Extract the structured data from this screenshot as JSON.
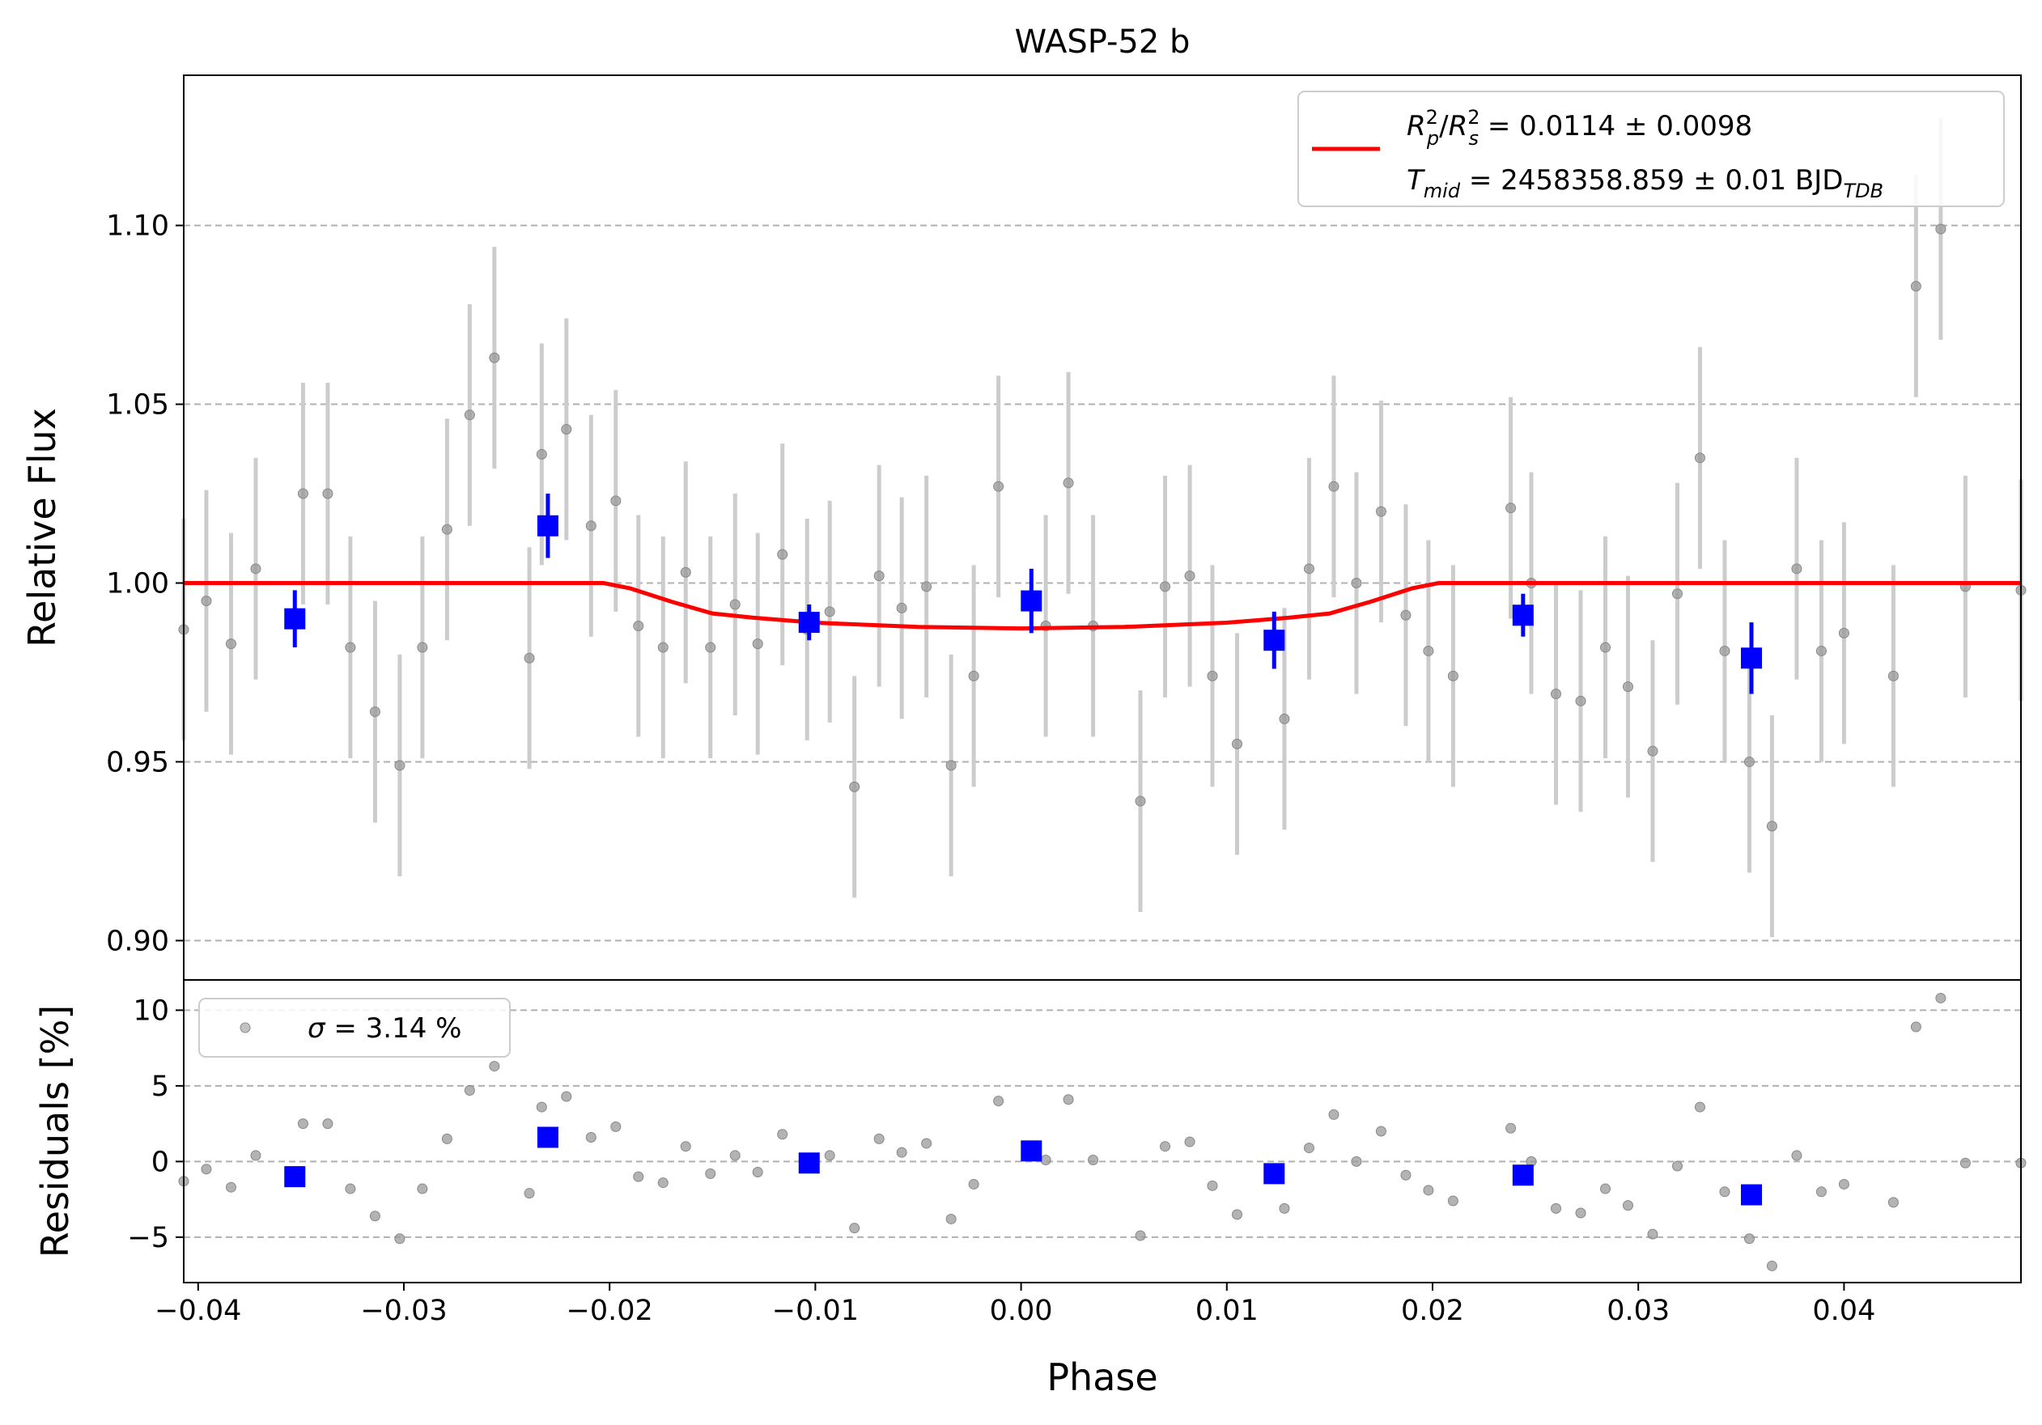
{
  "chart_data": [
    {
      "type": "scatter",
      "panel": "light-curve",
      "title": "WASP-52 b",
      "xlabel": "Phase",
      "ylabel": "Relative Flux",
      "xlim": [
        -0.0407,
        0.0486
      ],
      "ylim": [
        0.889,
        1.142
      ],
      "xticks": [
        {
          "v": -0.04,
          "label": "−0.04"
        },
        {
          "v": -0.03,
          "label": "−0.03"
        },
        {
          "v": -0.02,
          "label": "−0.02"
        },
        {
          "v": -0.01,
          "label": "−0.01"
        },
        {
          "v": 0.0,
          "label": "0.00"
        },
        {
          "v": 0.01,
          "label": "0.01"
        },
        {
          "v": 0.02,
          "label": "0.02"
        },
        {
          "v": 0.03,
          "label": "0.03"
        },
        {
          "v": 0.04,
          "label": "0.04"
        }
      ],
      "yticks": [
        {
          "v": 0.9,
          "label": "0.90"
        },
        {
          "v": 0.95,
          "label": "0.95"
        },
        {
          "v": 1.0,
          "label": "1.00"
        },
        {
          "v": 1.05,
          "label": "1.05"
        },
        {
          "v": 1.1,
          "label": "1.10"
        }
      ],
      "grid": "y-dashed",
      "legend": {
        "placement": "top-right",
        "line1_main": "R",
        "line1_text": " = 0.0114 ± 0.0098",
        "line2_main": "T",
        "line2_sub": "mid",
        "line2_text": " = 2458358.859 ± 0.01 BJD",
        "line2_unit_sub": "TDB"
      },
      "colors": {
        "raw": "#9a9a9a",
        "raw_err": "#cccccc",
        "binned": "#0000ff",
        "model": "#ff0000"
      },
      "series": [
        {
          "role": "raw",
          "x": [
            -0.0407,
            -0.0396,
            -0.0384,
            -0.0372,
            -0.0349,
            -0.0337,
            -0.0326,
            -0.0314,
            -0.0302,
            -0.0291,
            -0.0279,
            -0.0268,
            -0.0256,
            -0.0239,
            -0.0233,
            -0.0221,
            -0.0209,
            -0.0197,
            -0.0186,
            -0.0174,
            -0.0163,
            -0.0151,
            -0.0139,
            -0.0128,
            -0.0116,
            -0.0104,
            -0.0093,
            -0.0081,
            -0.0069,
            -0.0058,
            -0.0046,
            -0.0034,
            -0.0023,
            -0.0011,
            0.0012,
            0.0023,
            0.0035,
            0.0058,
            0.007,
            0.0082,
            0.0093,
            0.0105,
            0.0128,
            0.014,
            0.0152,
            0.0163,
            0.0175,
            0.0187,
            0.0198,
            0.021,
            0.0238,
            0.0248,
            0.026,
            0.0272,
            0.0284,
            0.0295,
            0.0307,
            0.0319,
            0.033,
            0.0342,
            0.0354,
            0.0365,
            0.0377,
            0.0389,
            0.04,
            0.0424,
            0.0435,
            0.0447,
            0.0459,
            0.0486
          ],
          "y": [
            0.987,
            0.995,
            0.983,
            1.004,
            1.025,
            1.025,
            0.982,
            0.964,
            0.949,
            0.982,
            1.015,
            1.047,
            1.063,
            0.979,
            1.036,
            1.043,
            1.016,
            1.023,
            0.988,
            0.982,
            1.003,
            0.982,
            0.994,
            0.983,
            1.008,
            0.987,
            0.992,
            0.943,
            1.002,
            0.993,
            0.999,
            0.949,
            0.974,
            1.027,
            0.988,
            1.028,
            0.988,
            0.939,
            0.999,
            1.002,
            0.974,
            0.955,
            0.962,
            1.004,
            1.027,
            1.0,
            1.02,
            0.991,
            0.981,
            0.974,
            1.021,
            1.0,
            0.969,
            0.967,
            0.982,
            0.971,
            0.953,
            0.997,
            1.035,
            0.981,
            0.95,
            0.932,
            1.004,
            0.981,
            0.986,
            0.974,
            1.083,
            1.099,
            0.999,
            0.998
          ],
          "yerr": 0.031
        },
        {
          "role": "binned",
          "x": [
            -0.0353,
            -0.023,
            -0.0103,
            0.0005,
            0.0123,
            0.0244,
            0.0355
          ],
          "y": [
            0.99,
            1.016,
            0.989,
            0.995,
            0.984,
            0.991,
            0.979
          ],
          "yerr": [
            0.008,
            0.009,
            0.005,
            0.009,
            0.008,
            0.006,
            0.01
          ]
        },
        {
          "role": "model",
          "x": [
            -0.0407,
            -0.0203,
            -0.019,
            -0.017,
            -0.015,
            -0.013,
            -0.01,
            -0.005,
            0.0,
            0.005,
            0.01,
            0.013,
            0.015,
            0.017,
            0.019,
            0.0203,
            0.0486
          ],
          "y": [
            1.0,
            1.0,
            0.9985,
            0.9948,
            0.9915,
            0.9903,
            0.9889,
            0.9877,
            0.9873,
            0.9877,
            0.9889,
            0.9903,
            0.9915,
            0.9948,
            0.9985,
            1.0,
            1.0
          ]
        }
      ]
    },
    {
      "type": "scatter",
      "panel": "residuals",
      "xlabel": "Phase",
      "ylabel": "Residuals [%]",
      "xlim": [
        -0.0407,
        0.0486
      ],
      "ylim": [
        -8,
        12
      ],
      "yticks": [
        {
          "v": 10,
          "label": "10"
        },
        {
          "v": 5,
          "label": "5"
        },
        {
          "v": 0,
          "label": "0"
        },
        {
          "v": -5,
          "label": "−5"
        }
      ],
      "grid": "y-dashed",
      "legend": {
        "placement": "top-left",
        "symbol": "σ",
        "text": " = 3.14 %"
      },
      "series": [
        {
          "role": "raw",
          "x": [
            -0.0407,
            -0.0396,
            -0.0384,
            -0.0372,
            -0.0349,
            -0.0337,
            -0.0326,
            -0.0314,
            -0.0302,
            -0.0291,
            -0.0279,
            -0.0268,
            -0.0256,
            -0.0239,
            -0.0233,
            -0.0221,
            -0.0209,
            -0.0197,
            -0.0186,
            -0.0174,
            -0.0163,
            -0.0151,
            -0.0139,
            -0.0128,
            -0.0116,
            -0.0104,
            -0.0093,
            -0.0081,
            -0.0069,
            -0.0058,
            -0.0046,
            -0.0034,
            -0.0023,
            -0.0011,
            0.0012,
            0.0023,
            0.0035,
            0.0058,
            0.007,
            0.0082,
            0.0093,
            0.0105,
            0.0128,
            0.014,
            0.0152,
            0.0163,
            0.0175,
            0.0187,
            0.0198,
            0.021,
            0.0238,
            0.0248,
            0.026,
            0.0272,
            0.0284,
            0.0295,
            0.0307,
            0.0319,
            0.033,
            0.0342,
            0.0354,
            0.0365,
            0.0377,
            0.0389,
            0.04,
            0.0424,
            0.0435,
            0.0447,
            0.0459,
            0.0486
          ],
          "y": [
            -1.3,
            -0.5,
            -1.7,
            0.4,
            2.5,
            2.5,
            -1.8,
            -3.6,
            -5.1,
            -1.8,
            1.5,
            4.7,
            6.3,
            -2.1,
            3.6,
            4.3,
            1.6,
            2.3,
            -1.0,
            -1.4,
            1.0,
            -0.8,
            0.4,
            -0.7,
            1.8,
            -0.1,
            0.4,
            -4.4,
            1.5,
            0.6,
            1.2,
            -3.8,
            -1.5,
            4.0,
            0.1,
            4.1,
            0.1,
            -4.9,
            1.0,
            1.3,
            -1.6,
            -3.5,
            -3.1,
            0.9,
            3.1,
            0.0,
            2.0,
            -0.9,
            -1.9,
            -2.6,
            2.2,
            0.0,
            -3.1,
            -3.4,
            -1.8,
            -2.9,
            -4.8,
            -0.3,
            3.6,
            -2.0,
            -5.1,
            -6.9,
            0.4,
            -2.0,
            -1.5,
            -2.7,
            8.9,
            10.8,
            -0.1,
            -0.1
          ]
        },
        {
          "role": "binned",
          "x": [
            -0.0353,
            -0.023,
            -0.0103,
            0.0005,
            0.0123,
            0.0244,
            0.0355
          ],
          "y": [
            -1.0,
            1.6,
            -0.1,
            0.7,
            -0.8,
            -0.9,
            -2.2
          ]
        }
      ]
    }
  ]
}
